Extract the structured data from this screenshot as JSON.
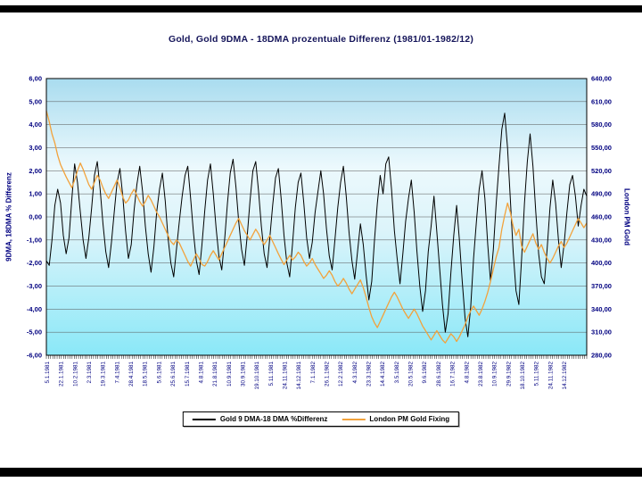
{
  "chart": {
    "title": "Gold,  Gold 9DMA - 18DMA prozentuale Differenz (1981/01-1982/12)",
    "left_axis": {
      "title": "9DMA, 18DMA % Differenz",
      "ticks": [
        "6,00",
        "5,00",
        "4,00",
        "3,00",
        "2,00",
        "1,00",
        "0,00",
        "-1,00",
        "-2,00",
        "-3,00",
        "-4,00",
        "-5,00",
        "-6,00"
      ]
    },
    "right_axis": {
      "title": "London PM Gold",
      "ticks": [
        "640,00",
        "610,00",
        "580,00",
        "550,00",
        "520,00",
        "490,00",
        "460,00",
        "430,00",
        "400,00",
        "370,00",
        "340,00",
        "310,00",
        "280,00"
      ]
    },
    "plot_gradient": [
      "#a9dcef",
      "#ecf9fd",
      "#dcf4fa",
      "#8ae8f8"
    ],
    "gridline_color": "#555555",
    "label_color": "#000080"
  },
  "legend": {
    "items": [
      {
        "label": "Gold 9 DMA-18 DMA %Differenz",
        "color": "#000000"
      },
      {
        "label": "London PM Gold Fixing",
        "color": "#F2A23C"
      }
    ]
  },
  "chart_data": {
    "type": "line",
    "title": "Gold,  Gold 9DMA - 18DMA prozentuale Differenz (1981/01-1982/12)",
    "grid": true,
    "legend_position": "bottom",
    "left_ylim": [
      -6,
      6
    ],
    "right_ylim": [
      280,
      640
    ],
    "x_labels": [
      "5.1.1981",
      "22.1.1981",
      "10.2.1981",
      "2.3.1981",
      "19.3.1981",
      "7.4.1981",
      "28.4.1981",
      "18.5.1981",
      "5.6.1981",
      "25.6.1981",
      "15.7.1981",
      "4.8.1981",
      "21.8.1981",
      "10.9.1981",
      "30.9.1981",
      "19.10.1981",
      "5.11.1981",
      "24.11.1981",
      "14.12.1981",
      "7.1.1982",
      "26.1.1982",
      "12.2.1982",
      "4.3.1982",
      "23.3.1982",
      "14.4.1982",
      "3.5.1982",
      "20.5.1982",
      "9.6.1982",
      "28.6.1982",
      "16.7.1982",
      "4.8.1982",
      "23.8.1982",
      "10.9.1982",
      "29.9.1982",
      "18.10.1982",
      "5.11.1982",
      "24.11.1982",
      "14.12.1982"
    ],
    "series": [
      {
        "name": "Gold 9 DMA-18 DMA %Differenz",
        "axis": "left",
        "color": "#000000",
        "width": 1,
        "values": [
          -1.9,
          -2.1,
          -1.0,
          0.5,
          1.2,
          0.6,
          -0.8,
          -1.6,
          -0.9,
          0.8,
          2.3,
          1.5,
          0.2,
          -1.0,
          -1.8,
          -0.9,
          0.4,
          1.8,
          2.4,
          1.2,
          -0.3,
          -1.5,
          -2.2,
          -1.1,
          0.2,
          1.5,
          2.1,
          0.9,
          -0.6,
          -1.8,
          -1.2,
          0.3,
          1.4,
          2.2,
          1.1,
          -0.4,
          -1.6,
          -2.4,
          -1.3,
          0.2,
          1.2,
          1.9,
          0.7,
          -0.9,
          -2.0,
          -2.6,
          -1.4,
          -0.2,
          0.9,
          1.8,
          2.2,
          0.8,
          -0.7,
          -1.9,
          -2.5,
          -1.2,
          0.3,
          1.6,
          2.3,
          1.0,
          -0.5,
          -1.7,
          -2.3,
          -1.0,
          0.6,
          1.9,
          2.5,
          1.3,
          -0.2,
          -1.4,
          -2.1,
          -0.8,
          0.7,
          2.0,
          2.4,
          1.1,
          -0.4,
          -1.6,
          -2.2,
          -0.9,
          0.5,
          1.7,
          2.1,
          0.8,
          -0.8,
          -2.0,
          -2.6,
          -1.2,
          0.4,
          1.5,
          1.9,
          0.6,
          -0.9,
          -1.8,
          -1.1,
          0.2,
          1.1,
          2.0,
          1.0,
          -0.5,
          -1.7,
          -2.3,
          -1.0,
          0.4,
          1.5,
          2.2,
          0.9,
          -0.7,
          -1.9,
          -2.7,
          -1.5,
          -0.3,
          -1.2,
          -2.5,
          -3.6,
          -2.8,
          -1.0,
          0.6,
          1.8,
          1.0,
          2.3,
          2.6,
          1.2,
          -0.6,
          -1.8,
          -2.9,
          -1.6,
          -0.2,
          0.8,
          1.6,
          0.2,
          -1.5,
          -3.0,
          -4.1,
          -3.2,
          -1.5,
          -0.4,
          0.9,
          -0.6,
          -2.2,
          -3.8,
          -5.0,
          -4.2,
          -2.4,
          -0.8,
          0.5,
          -1.0,
          -2.8,
          -4.4,
          -5.2,
          -3.9,
          -1.8,
          -0.2,
          1.2,
          2.0,
          0.8,
          -1.2,
          -2.8,
          -1.4,
          0.6,
          2.2,
          3.8,
          4.5,
          3.0,
          0.8,
          -1.5,
          -3.2,
          -3.8,
          -1.8,
          0.6,
          2.4,
          3.6,
          2.2,
          0.2,
          -1.6,
          -2.6,
          -2.9,
          -1.4,
          0.4,
          1.6,
          0.6,
          -1.0,
          -2.2,
          -1.2,
          0.2,
          1.4,
          1.8,
          0.9,
          -0.4,
          0.5,
          1.2,
          0.9
        ]
      },
      {
        "name": "London PM Gold Fixing",
        "axis": "right",
        "color": "#F2A23C",
        "width": 1.3,
        "values": [
          598,
          584,
          568,
          556,
          540,
          528,
          520,
          512,
          505,
          498,
          508,
          520,
          530,
          522,
          512,
          502,
          496,
          505,
          514,
          508,
          498,
          490,
          484,
          492,
          500,
          508,
          498,
          486,
          478,
          482,
          490,
          496,
          488,
          480,
          474,
          480,
          488,
          482,
          474,
          466,
          460,
          452,
          444,
          436,
          428,
          424,
          430,
          426,
          418,
          410,
          402,
          396,
          404,
          412,
          406,
          398,
          396,
          402,
          410,
          416,
          410,
          404,
          412,
          420,
          428,
          436,
          444,
          452,
          458,
          450,
          442,
          436,
          430,
          437,
          444,
          438,
          430,
          424,
          430,
          436,
          428,
          420,
          412,
          405,
          398,
          404,
          410,
          404,
          408,
          414,
          410,
          402,
          396,
          400,
          406,
          398,
          392,
          386,
          380,
          384,
          390,
          384,
          376,
          370,
          374,
          380,
          374,
          366,
          360,
          366,
          372,
          378,
          368,
          356,
          342,
          330,
          322,
          316,
          324,
          332,
          340,
          348,
          356,
          362,
          356,
          348,
          340,
          334,
          328,
          334,
          340,
          334,
          326,
          318,
          312,
          306,
          300,
          306,
          312,
          306,
          300,
          296,
          302,
          308,
          304,
          298,
          304,
          312,
          320,
          330,
          338,
          344,
          338,
          332,
          340,
          350,
          362,
          376,
          392,
          408,
          420,
          444,
          462,
          478,
          466,
          448,
          436,
          444,
          422,
          414,
          422,
          430,
          438,
          426,
          418,
          424,
          414,
          406,
          400,
          406,
          414,
          422,
          428,
          420,
          426,
          434,
          442,
          450,
          458,
          452,
          446,
          452
        ]
      }
    ]
  }
}
